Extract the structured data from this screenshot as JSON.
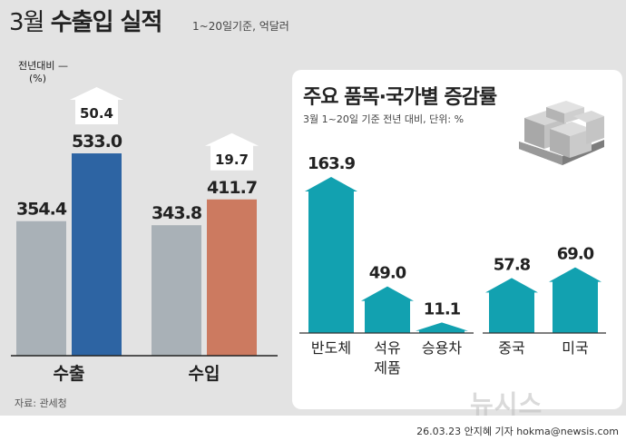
{
  "header": {
    "title_num": "3월",
    "title_main": "수출입 실적",
    "subtitle": "1~20일기준, 억달러"
  },
  "left_chart": {
    "yoy_label_line1": "전년대비 —",
    "yoy_label_line2": "(%)"
  },
  "right_panel": {
    "title": "주요 품목·국가별 증감률",
    "subtitle": "3월 1~20일 기준 전년 대비, 단위: %"
  },
  "footer": {
    "source": "자료: 관세청",
    "credit": "26.03.23 안지혜 기자 hokma@newsis.com",
    "watermark": "뉴시스"
  },
  "colors": {
    "prev_year": "#a9b1b7",
    "export_2026": "#2d64a3",
    "import_2026": "#cc7a60",
    "item_bar": "#12a1b0"
  },
  "chart_data": [
    {
      "type": "bar",
      "title": "수출입 실적",
      "categories": [
        "수출",
        "수입"
      ],
      "series": [
        {
          "values": [
            354.4,
            343.8
          ]
        },
        {
          "values": [
            533.0,
            411.7
          ]
        }
      ],
      "value_labels": [
        [
          "354.4",
          "533.0"
        ],
        [
          "343.8",
          "411.7"
        ]
      ],
      "yoy_change": [
        50.4,
        19.7
      ],
      "yoy_labels": [
        "50.4",
        "19.7"
      ],
      "ylim": [
        0,
        600
      ]
    },
    {
      "type": "bar",
      "title": "주요 품목·국가별 증감률",
      "categories": [
        "반도체",
        "석유\n제품",
        "승용차",
        "중국",
        "미국"
      ],
      "values": [
        163.9,
        49.0,
        11.1,
        57.8,
        69.0
      ],
      "value_labels": [
        "163.9",
        "49.0",
        "11.1",
        "57.8",
        "69.0"
      ],
      "ylim": [
        0,
        180
      ]
    }
  ]
}
